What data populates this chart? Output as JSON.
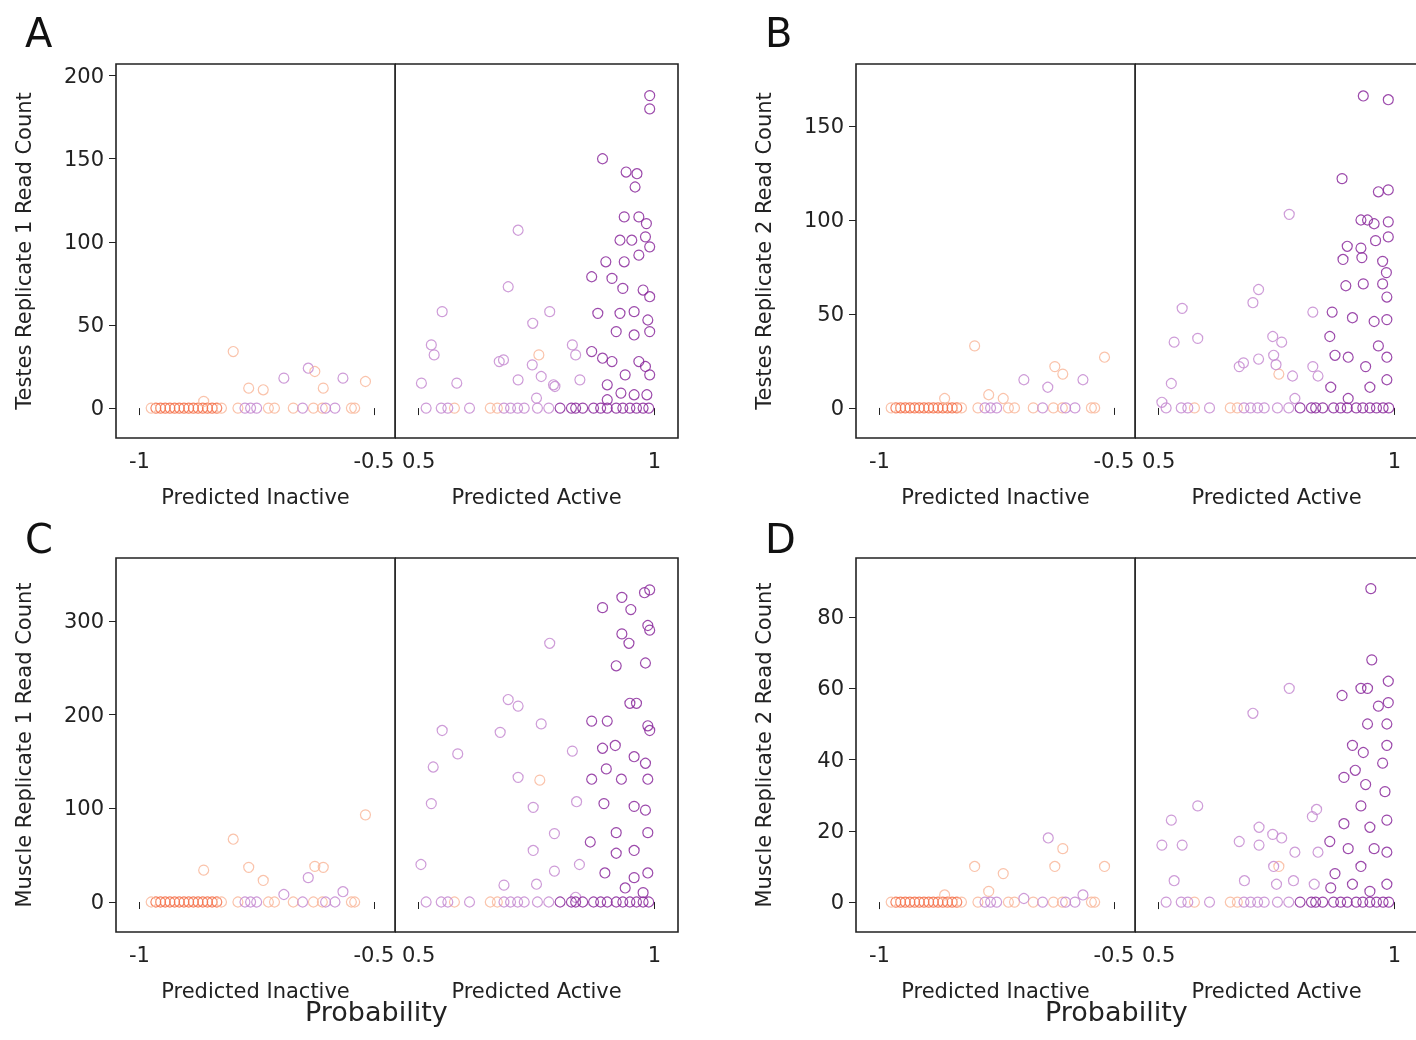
{
  "chart_data": [
    {
      "type": "scatter",
      "title": "A",
      "ylabel": "Testes Replicate 1 Read Count",
      "xlabel": "Predicted Inactive",
      "xlim": [
        -1.05,
        -0.455
      ],
      "xticks": [
        -1,
        -0.5
      ],
      "ylim": [
        -18,
        207
      ],
      "yticks": [
        0,
        50,
        100,
        150,
        200
      ],
      "marker": "circle",
      "series": [
        {
          "color": "#f4714a",
          "x": [
            -0.965,
            -0.955,
            -0.945,
            -0.935,
            -0.925,
            -0.915,
            -0.905,
            -0.895,
            -0.885,
            -0.875,
            -0.865,
            -0.855,
            -0.845,
            -0.835
          ],
          "values": [
            0,
            0,
            0,
            0,
            0,
            0,
            0,
            0,
            0,
            0,
            0,
            0,
            0,
            0
          ]
        },
        {
          "color": "#f9b89c",
          "x": [
            -0.975,
            -0.825,
            -0.79,
            -0.725,
            -0.712,
            -0.672,
            -0.629,
            -0.61,
            -0.548,
            -0.541,
            -0.8,
            -0.767,
            -0.736,
            -0.626,
            -0.608,
            -0.518,
            -0.863
          ],
          "values": [
            0,
            0,
            0,
            0,
            0,
            0,
            0,
            0,
            0,
            0,
            34,
            12,
            11,
            22,
            12,
            16,
            4
          ]
        },
        {
          "color": "#c58bd1",
          "x": [
            -0.775,
            -0.763,
            -0.75,
            -0.652,
            -0.603,
            -0.583,
            -0.692,
            -0.64,
            -0.566
          ],
          "values": [
            0,
            0,
            0,
            0,
            0,
            0,
            18,
            24,
            18
          ]
        }
      ]
    },
    {
      "type": "scatter",
      "xlabel": "Predicted Active",
      "xlim": [
        0.45,
        1.05
      ],
      "xticks": [
        0.5,
        1
      ],
      "ylim": [
        -18,
        207
      ],
      "yticks": [
        0,
        50,
        100,
        150,
        200
      ],
      "tick_labels": "x",
      "marker": "circle",
      "series": [
        {
          "color": "#f9b89c",
          "x": [
            0.576,
            0.652,
            0.667,
            0.755
          ],
          "values": [
            0,
            0,
            0,
            32
          ]
        },
        {
          "color": "#c58bd1",
          "x": [
            0.516,
            0.548,
            0.562,
            0.608,
            0.681,
            0.695,
            0.71,
            0.724,
            0.752,
            0.776,
            0.711,
            0.69,
            0.55,
            0.778,
            0.742,
            0.527,
            0.533,
            0.671,
            0.68,
            0.826,
            0.833,
            0.741,
            0.711,
            0.76,
            0.786,
            0.789,
            0.506,
            0.581,
            0.842,
            0.75
          ],
          "values": [
            0,
            0,
            0,
            0,
            0,
            0,
            0,
            0,
            0,
            0,
            107,
            73,
            58,
            58,
            51,
            38,
            32,
            28,
            29,
            38,
            32,
            26,
            17,
            19,
            14,
            13,
            15,
            15,
            17,
            6
          ]
        },
        {
          "color": "#8b2a9c",
          "x": [
            0.8,
            0.824,
            0.833,
            0.848,
            0.871,
            0.886,
            0.9,
            0.919,
            0.933,
            0.948,
            0.962,
            0.976,
            0.988,
            0.99,
            0.99,
            0.89,
            0.94,
            0.963,
            0.959,
            0.936,
            0.967,
            0.983,
            0.927,
            0.952,
            0.981,
            0.99,
            0.897,
            0.936,
            0.967,
            0.867,
            0.91,
            0.933,
            0.976,
            0.99,
            0.88,
            0.927,
            0.957,
            0.986,
            0.99,
            0.919,
            0.957,
            0.867,
            0.89,
            0.91,
            0.938,
            0.967,
            0.981,
            0.99,
            0.9,
            0.929,
            0.957,
            0.984,
            0.9
          ],
          "values": [
            0,
            0,
            0,
            0,
            0,
            0,
            0,
            0,
            0,
            0,
            0,
            0,
            0,
            188,
            180,
            150,
            142,
            141,
            133,
            115,
            115,
            111,
            101,
            101,
            103,
            97,
            88,
            88,
            92,
            79,
            78,
            72,
            71,
            67,
            57,
            57,
            58,
            53,
            46,
            46,
            44,
            34,
            30,
            28,
            20,
            28,
            25,
            20,
            14,
            9,
            8,
            8,
            5
          ]
        }
      ]
    },
    {
      "type": "scatter",
      "title": "B",
      "ylabel": "Testes Replicate 2 Read Count",
      "xlabel": "Predicted Inactive",
      "xlim": [
        -1.05,
        -0.455
      ],
      "xticks": [
        -1,
        -0.5
      ],
      "ylim": [
        -16,
        183
      ],
      "yticks": [
        0,
        50,
        100,
        150
      ],
      "marker": "circle",
      "series": [
        {
          "color": "#f4714a",
          "x": [
            -0.965,
            -0.955,
            -0.945,
            -0.935,
            -0.925,
            -0.915,
            -0.905,
            -0.895,
            -0.885,
            -0.875,
            -0.865,
            -0.855,
            -0.845,
            -0.835
          ],
          "values": [
            0,
            0,
            0,
            0,
            0,
            0,
            0,
            0,
            0,
            0,
            0,
            0,
            0,
            0
          ]
        },
        {
          "color": "#f9b89c",
          "x": [
            -0.975,
            -0.825,
            -0.79,
            -0.725,
            -0.712,
            -0.672,
            -0.629,
            -0.61,
            -0.548,
            -0.541,
            -0.797,
            -0.52,
            -0.626,
            -0.609,
            -0.767,
            -0.736,
            -0.861
          ],
          "values": [
            0,
            0,
            0,
            0,
            0,
            0,
            0,
            0,
            0,
            0,
            33,
            27,
            22,
            18,
            7,
            5,
            5
          ]
        },
        {
          "color": "#c58bd1",
          "x": [
            -0.775,
            -0.763,
            -0.75,
            -0.652,
            -0.603,
            -0.583,
            -0.692,
            -0.641,
            -0.566
          ],
          "values": [
            0,
            0,
            0,
            0,
            0,
            0,
            15,
            11,
            15
          ]
        }
      ]
    },
    {
      "type": "scatter",
      "xlabel": "Predicted Active",
      "xlim": [
        0.45,
        1.05
      ],
      "xticks": [
        0.5,
        1
      ],
      "ylim": [
        -16,
        183
      ],
      "yticks": [
        0,
        50,
        100,
        150
      ],
      "tick_labels": "x",
      "marker": "circle",
      "series": [
        {
          "color": "#f9b89c",
          "x": [
            0.576,
            0.652,
            0.667,
            0.755
          ],
          "values": [
            0,
            0,
            0,
            18
          ]
        },
        {
          "color": "#c58bd1",
          "x": [
            0.516,
            0.548,
            0.562,
            0.608,
            0.681,
            0.695,
            0.71,
            0.724,
            0.752,
            0.776,
            0.777,
            0.712,
            0.7,
            0.55,
            0.827,
            0.533,
            0.583,
            0.742,
            0.761,
            0.671,
            0.68,
            0.712,
            0.744,
            0.749,
            0.784,
            0.827,
            0.838,
            0.527,
            0.507,
            0.789
          ],
          "values": [
            0,
            0,
            0,
            0,
            0,
            0,
            0,
            0,
            0,
            0,
            103,
            63,
            56,
            53,
            51,
            35,
            37,
            38,
            35,
            22,
            24,
            26,
            28,
            23,
            17,
            22,
            17,
            13,
            3,
            5
          ]
        },
        {
          "color": "#8b2a9c",
          "x": [
            0.8,
            0.824,
            0.833,
            0.848,
            0.871,
            0.886,
            0.9,
            0.919,
            0.933,
            0.948,
            0.962,
            0.976,
            0.988,
            0.934,
            0.987,
            0.889,
            0.966,
            0.987,
            0.929,
            0.943,
            0.957,
            0.987,
            0.987,
            0.9,
            0.929,
            0.96,
            0.891,
            0.931,
            0.975,
            0.983,
            0.897,
            0.934,
            0.975,
            0.984,
            0.868,
            0.911,
            0.957,
            0.984,
            0.863,
            0.874,
            0.902,
            0.939,
            0.966,
            0.984,
            0.984,
            0.865,
            0.902,
            0.948
          ],
          "values": [
            0,
            0,
            0,
            0,
            0,
            0,
            0,
            0,
            0,
            0,
            0,
            0,
            0,
            166,
            164,
            122,
            115,
            116,
            100,
            100,
            98,
            99,
            91,
            86,
            85,
            89,
            79,
            80,
            78,
            72,
            65,
            66,
            66,
            59,
            51,
            48,
            46,
            47,
            38,
            28,
            27,
            22,
            33,
            27,
            15,
            11,
            5,
            11
          ]
        }
      ]
    },
    {
      "type": "scatter",
      "title": "C",
      "ylabel": "Muscle Replicate 1 Read Count",
      "xlabel": "Predicted Inactive",
      "xlim": [
        -1.05,
        -0.455
      ],
      "xticks": [
        -1,
        -0.5
      ],
      "ylim": [
        -32,
        367
      ],
      "yticks": [
        0,
        100,
        200,
        300
      ],
      "marker": "circle",
      "annotations": [
        "Probability"
      ],
      "series": [
        {
          "color": "#f4714a",
          "x": [
            -0.965,
            -0.955,
            -0.945,
            -0.935,
            -0.925,
            -0.915,
            -0.905,
            -0.895,
            -0.885,
            -0.875,
            -0.865,
            -0.855,
            -0.845,
            -0.835
          ],
          "values": [
            0,
            0,
            0,
            0,
            0,
            0,
            0,
            0,
            0,
            0,
            0,
            0,
            0,
            0
          ]
        },
        {
          "color": "#f9b89c",
          "x": [
            -0.975,
            -0.825,
            -0.79,
            -0.725,
            -0.712,
            -0.672,
            -0.629,
            -0.61,
            -0.548,
            -0.541,
            -0.8,
            -0.863,
            -0.767,
            -0.736,
            -0.626,
            -0.608,
            -0.518
          ],
          "values": [
            0,
            0,
            0,
            0,
            0,
            0,
            0,
            0,
            0,
            0,
            67,
            34,
            37,
            23,
            38,
            37,
            93
          ]
        },
        {
          "color": "#c58bd1",
          "x": [
            -0.775,
            -0.763,
            -0.75,
            -0.652,
            -0.603,
            -0.583,
            -0.692,
            -0.64,
            -0.566
          ],
          "values": [
            0,
            0,
            0,
            0,
            0,
            0,
            8,
            26,
            11
          ]
        }
      ]
    },
    {
      "type": "scatter",
      "xlabel": "Predicted Active",
      "xlim": [
        0.45,
        1.05
      ],
      "xticks": [
        0.5,
        1
      ],
      "ylim": [
        -32,
        367
      ],
      "yticks": [
        0,
        100,
        200,
        300
      ],
      "tick_labels": "x",
      "marker": "circle",
      "series": [
        {
          "color": "#f9b89c",
          "x": [
            0.576,
            0.652,
            0.667,
            0.757
          ],
          "values": [
            0,
            0,
            0,
            130
          ]
        },
        {
          "color": "#c58bd1",
          "x": [
            0.516,
            0.548,
            0.562,
            0.608,
            0.681,
            0.695,
            0.71,
            0.724,
            0.752,
            0.776,
            0.778,
            0.69,
            0.711,
            0.76,
            0.673,
            0.55,
            0.583,
            0.531,
            0.527,
            0.826,
            0.711,
            0.835,
            0.743,
            0.788,
            0.743,
            0.841,
            0.788,
            0.505,
            0.681,
            0.75,
            0.833
          ],
          "values": [
            0,
            0,
            0,
            0,
            0,
            0,
            0,
            0,
            0,
            0,
            276,
            216,
            209,
            190,
            181,
            183,
            158,
            144,
            105,
            161,
            133,
            107,
            101,
            73,
            55,
            40,
            33,
            40,
            18,
            19,
            5
          ]
        },
        {
          "color": "#8b2a9c",
          "x": [
            0.8,
            0.824,
            0.833,
            0.848,
            0.871,
            0.886,
            0.9,
            0.919,
            0.933,
            0.948,
            0.962,
            0.976,
            0.988,
            0.99,
            0.979,
            0.931,
            0.89,
            0.95,
            0.986,
            0.99,
            0.931,
            0.946,
            0.919,
            0.981,
            0.867,
            0.9,
            0.948,
            0.962,
            0.986,
            0.99,
            0.89,
            0.917,
            0.957,
            0.981,
            0.867,
            0.898,
            0.93,
            0.986,
            0.893,
            0.957,
            0.981,
            0.919,
            0.986,
            0.864,
            0.919,
            0.957,
            0.895,
            0.957,
            0.986,
            0.938,
            0.976
          ],
          "values": [
            0,
            0,
            0,
            0,
            0,
            0,
            0,
            0,
            0,
            0,
            0,
            0,
            0,
            333,
            330,
            325,
            314,
            312,
            295,
            290,
            286,
            276,
            252,
            255,
            193,
            193,
            212,
            212,
            188,
            183,
            164,
            167,
            155,
            148,
            131,
            142,
            131,
            131,
            105,
            102,
            98,
            74,
            74,
            64,
            52,
            55,
            31,
            26,
            31,
            15,
            10
          ]
        }
      ]
    },
    {
      "type": "scatter",
      "title": "D",
      "ylabel": "Muscle Replicate 2 Read Count",
      "xlabel": "Predicted Inactive",
      "xlim": [
        -1.05,
        -0.455
      ],
      "xticks": [
        -1,
        -0.5
      ],
      "ylim": [
        -8.4,
        96.6
      ],
      "yticks": [
        0,
        20,
        40,
        60,
        80
      ],
      "marker": "circle",
      "annotations": [
        "Probability"
      ],
      "series": [
        {
          "color": "#f4714a",
          "x": [
            -0.965,
            -0.955,
            -0.945,
            -0.935,
            -0.925,
            -0.915,
            -0.905,
            -0.895,
            -0.885,
            -0.875,
            -0.865,
            -0.855,
            -0.845,
            -0.835
          ],
          "values": [
            0,
            0,
            0,
            0,
            0,
            0,
            0,
            0,
            0,
            0,
            0,
            0,
            0,
            0
          ]
        },
        {
          "color": "#f9b89c",
          "x": [
            -0.975,
            -0.825,
            -0.79,
            -0.725,
            -0.712,
            -0.672,
            -0.629,
            -0.61,
            -0.548,
            -0.541,
            -0.609,
            -0.626,
            -0.797,
            -0.736,
            -0.52,
            -0.767,
            -0.861
          ],
          "values": [
            0,
            0,
            0,
            0,
            0,
            0,
            0,
            0,
            0,
            0,
            15,
            10,
            10,
            8,
            10,
            3,
            2
          ]
        },
        {
          "color": "#c58bd1",
          "x": [
            -0.775,
            -0.763,
            -0.75,
            -0.652,
            -0.603,
            -0.583,
            -0.64,
            -0.692,
            -0.566
          ],
          "values": [
            0,
            0,
            0,
            0,
            0,
            0,
            18,
            1,
            2
          ]
        }
      ]
    },
    {
      "type": "scatter",
      "xlabel": "Predicted Active",
      "xlim": [
        0.45,
        1.05
      ],
      "xticks": [
        0.5,
        1
      ],
      "ylim": [
        -8.4,
        96.6
      ],
      "yticks": [
        0,
        20,
        40,
        60,
        80
      ],
      "tick_labels": "x",
      "marker": "circle",
      "series": [
        {
          "color": "#f9b89c",
          "x": [
            0.576,
            0.652,
            0.667,
            0.755
          ],
          "values": [
            0,
            0,
            0,
            10
          ]
        },
        {
          "color": "#c58bd1",
          "x": [
            0.516,
            0.548,
            0.562,
            0.608,
            0.681,
            0.695,
            0.71,
            0.724,
            0.752,
            0.776,
            0.777,
            0.7,
            0.583,
            0.527,
            0.835,
            0.826,
            0.713,
            0.742,
            0.761,
            0.671,
            0.713,
            0.507,
            0.55,
            0.789,
            0.838,
            0.744,
            0.682,
            0.533,
            0.786,
            0.75,
            0.83
          ],
          "values": [
            0,
            0,
            0,
            0,
            0,
            0,
            0,
            0,
            0,
            0,
            60,
            53,
            27,
            23,
            26,
            24,
            21,
            19,
            18,
            17,
            16,
            16,
            16,
            14,
            14,
            10,
            6,
            6,
            6,
            5,
            5
          ]
        },
        {
          "color": "#8b2a9c",
          "x": [
            0.8,
            0.824,
            0.833,
            0.848,
            0.871,
            0.886,
            0.9,
            0.919,
            0.933,
            0.948,
            0.962,
            0.976,
            0.988,
            0.95,
            0.952,
            0.889,
            0.929,
            0.943,
            0.987,
            0.987,
            0.966,
            0.943,
            0.984,
            0.911,
            0.934,
            0.984,
            0.975,
            0.893,
            0.917,
            0.939,
            0.98,
            0.929,
            0.893,
            0.948,
            0.984,
            0.863,
            0.902,
            0.957,
            0.984,
            0.874,
            0.929,
            0.865,
            0.911,
            0.948,
            0.984
          ],
          "values": [
            0,
            0,
            0,
            0,
            0,
            0,
            0,
            0,
            0,
            0,
            0,
            0,
            0,
            88,
            68,
            58,
            60,
            60,
            62,
            56,
            55,
            50,
            50,
            44,
            42,
            44,
            39,
            35,
            37,
            33,
            31,
            27,
            22,
            21,
            23,
            17,
            15,
            15,
            14,
            8,
            10,
            4,
            5,
            3,
            5
          ]
        }
      ]
    }
  ]
}
